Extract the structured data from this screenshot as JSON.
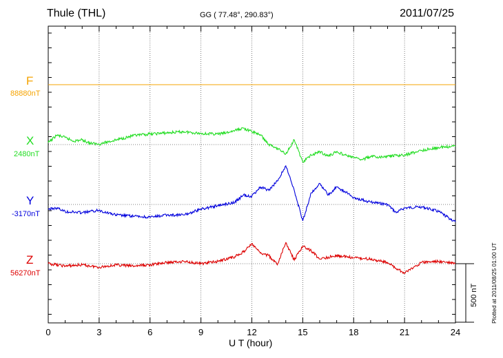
{
  "header": {
    "station": "Thule (THL)",
    "coords": "GG ( 77.48°, 290.83°)",
    "date": "2011/07/25"
  },
  "components": [
    {
      "letter": "F",
      "baseline": "88880nT",
      "color": "#f5a300"
    },
    {
      "letter": "X",
      "baseline": "2480nT",
      "color": "#22dd22"
    },
    {
      "letter": "Y",
      "baseline": "-3170nT",
      "color": "#0000dd"
    },
    {
      "letter": "Z",
      "baseline": "56270nT",
      "color": "#dd0000"
    }
  ],
  "footer": {
    "plotted": "Plotted at 2011/08/25 01:00 UT",
    "scale": "500 nT"
  },
  "chart_data": {
    "type": "line",
    "title": "Thule (THL)",
    "xlabel": "U T (hour)",
    "ylabel": "",
    "xlim": [
      0,
      24
    ],
    "xticks": [
      0,
      3,
      6,
      9,
      12,
      15,
      18,
      21,
      24
    ],
    "y_unit": "nT",
    "scale_bar_nT": 500,
    "grid": true,
    "series": [
      {
        "name": "F",
        "baseline": "88880nT",
        "color": "#f5a300",
        "x": [
          0,
          24
        ],
        "y": [
          0,
          0
        ]
      },
      {
        "name": "X",
        "baseline": "2480nT",
        "color": "#22dd22",
        "x": [
          0,
          0.5,
          1,
          1.5,
          2,
          2.5,
          3,
          4,
          5,
          6,
          7,
          8,
          9,
          10,
          10.5,
          11,
          11.5,
          12,
          12.5,
          13,
          13.5,
          14,
          14.5,
          15,
          15.5,
          16,
          16.5,
          17,
          17.5,
          18,
          18.5,
          19,
          19.5,
          20,
          21,
          22,
          23,
          24
        ],
        "y": [
          15,
          80,
          60,
          30,
          40,
          10,
          5,
          40,
          75,
          90,
          100,
          110,
          95,
          90,
          100,
          120,
          140,
          110,
          85,
          0,
          -30,
          -80,
          40,
          -150,
          -90,
          -60,
          -100,
          -60,
          -90,
          -110,
          -130,
          -100,
          -110,
          -100,
          -90,
          -50,
          -25,
          -15
        ]
      },
      {
        "name": "Y",
        "baseline": "-3170nT",
        "color": "#0000dd",
        "x": [
          0,
          0.5,
          1,
          2,
          3,
          4,
          5,
          6,
          7,
          8,
          9,
          10,
          11,
          11.5,
          12,
          12.5,
          13,
          13.5,
          14,
          14.5,
          15,
          15.5,
          16,
          16.5,
          17,
          17.5,
          18,
          19,
          20,
          20.5,
          21,
          22,
          23,
          24
        ],
        "y": [
          -40,
          -30,
          -60,
          -70,
          -50,
          -90,
          -100,
          -110,
          -90,
          -90,
          -40,
          -10,
          20,
          80,
          70,
          150,
          120,
          200,
          330,
          120,
          -140,
          100,
          180,
          80,
          150,
          110,
          60,
          20,
          0,
          -70,
          -30,
          -20,
          -60,
          -150
        ]
      },
      {
        "name": "Z",
        "baseline": "56270nT",
        "color": "#dd0000",
        "x": [
          0,
          1,
          2,
          3,
          4,
          5,
          6,
          7,
          8,
          9,
          10,
          11,
          11.5,
          12,
          12.5,
          13,
          13.5,
          14,
          14.5,
          15,
          15.5,
          16,
          17,
          18,
          19,
          20,
          20.5,
          21,
          22,
          23,
          24
        ],
        "y": [
          0,
          -20,
          -10,
          -30,
          -10,
          -20,
          -10,
          10,
          20,
          0,
          20,
          60,
          100,
          170,
          90,
          70,
          -10,
          180,
          30,
          150,
          110,
          40,
          70,
          50,
          40,
          10,
          -40,
          -80,
          10,
          20,
          0
        ]
      }
    ]
  }
}
